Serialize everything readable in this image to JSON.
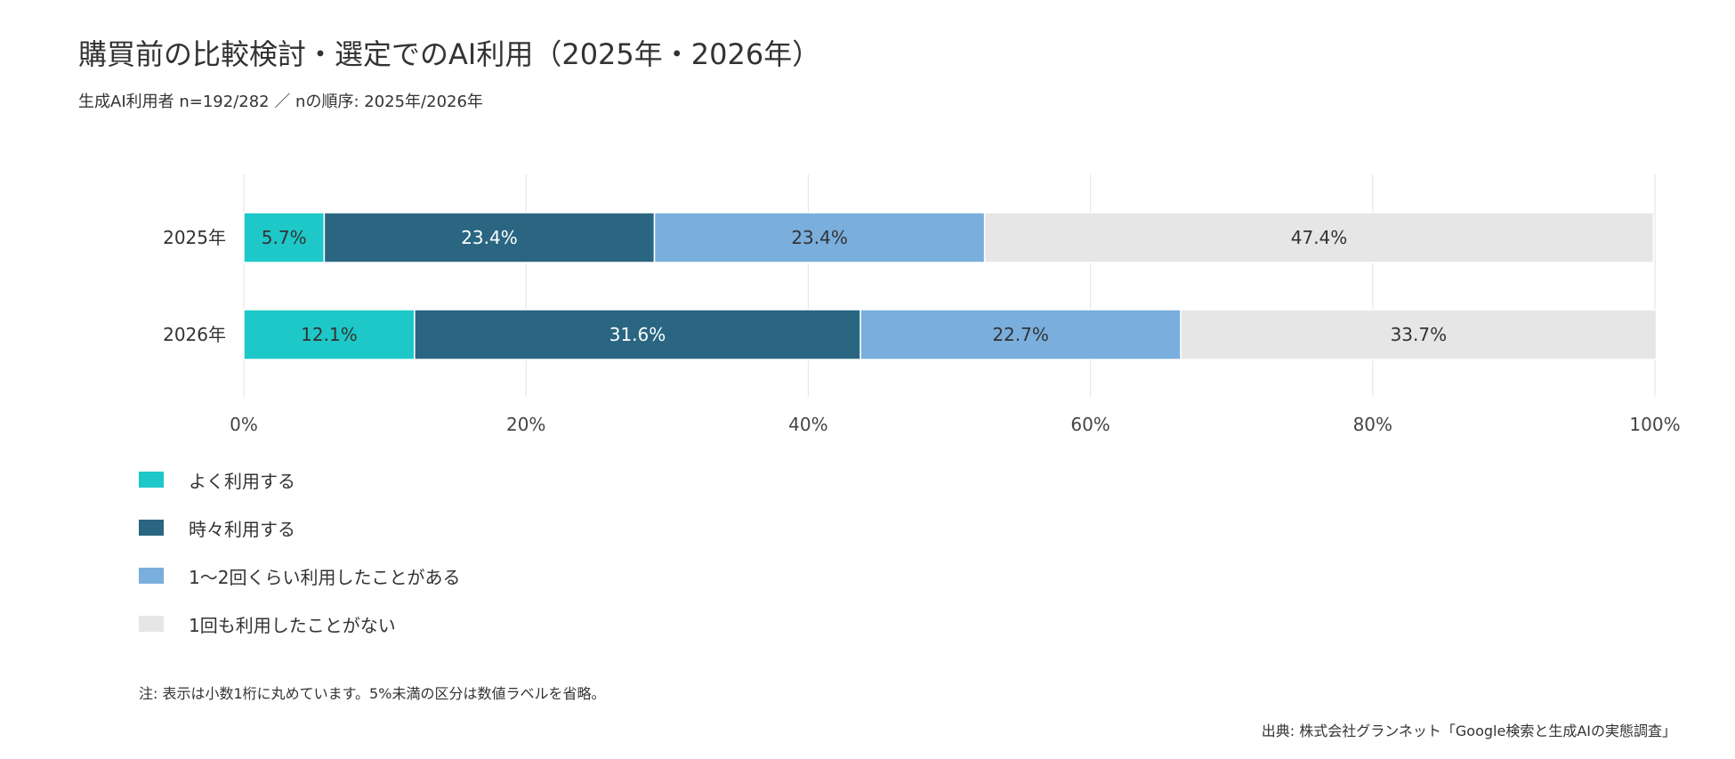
{
  "title": "購買前の比較検討・選定でのAI利用（2025年・2026年）",
  "subtitle": "生成AI利用者 n=192/282 ／ nの順序: 2025年/2026年",
  "note": "注: 表示は小数1桁に丸めています。5%未満の区分は数値ラベルを省略。",
  "source": "出典: 株式会社グランネット「Google検索と生成AIの実態調査」",
  "chart_data": {
    "type": "bar",
    "orientation": "horizontal",
    "stacked": true,
    "normalized": true,
    "categories": [
      "2025年",
      "2026年"
    ],
    "series": [
      {
        "name": "よく利用する",
        "values": [
          5.7,
          12.1
        ],
        "color": "#1ec8c8",
        "label_color": "#333333"
      },
      {
        "name": "時々利用する",
        "values": [
          23.4,
          31.6
        ],
        "color": "#2a6681",
        "label_color": "#ffffff"
      },
      {
        "name": "1〜2回くらい利用したことがある",
        "values": [
          23.4,
          22.7
        ],
        "color": "#7aaedd",
        "label_color": "#333333"
      },
      {
        "name": "1回も利用したことがない",
        "values": [
          47.4,
          33.7
        ],
        "color": "#e6e6e6",
        "label_color": "#333333"
      }
    ],
    "data_labels": [
      [
        "5.7%",
        "12.1%"
      ],
      [
        "23.4%",
        "31.6%"
      ],
      [
        "23.4%",
        "22.7%"
      ],
      [
        "47.4%",
        "33.7%"
      ]
    ],
    "xlim": [
      0,
      100
    ],
    "xticks": [
      0,
      20,
      40,
      60,
      80,
      100
    ],
    "xtick_labels": [
      "0%",
      "20%",
      "40%",
      "60%",
      "80%",
      "100%"
    ],
    "grid": "vertical",
    "legend_position": "bottom-left"
  }
}
